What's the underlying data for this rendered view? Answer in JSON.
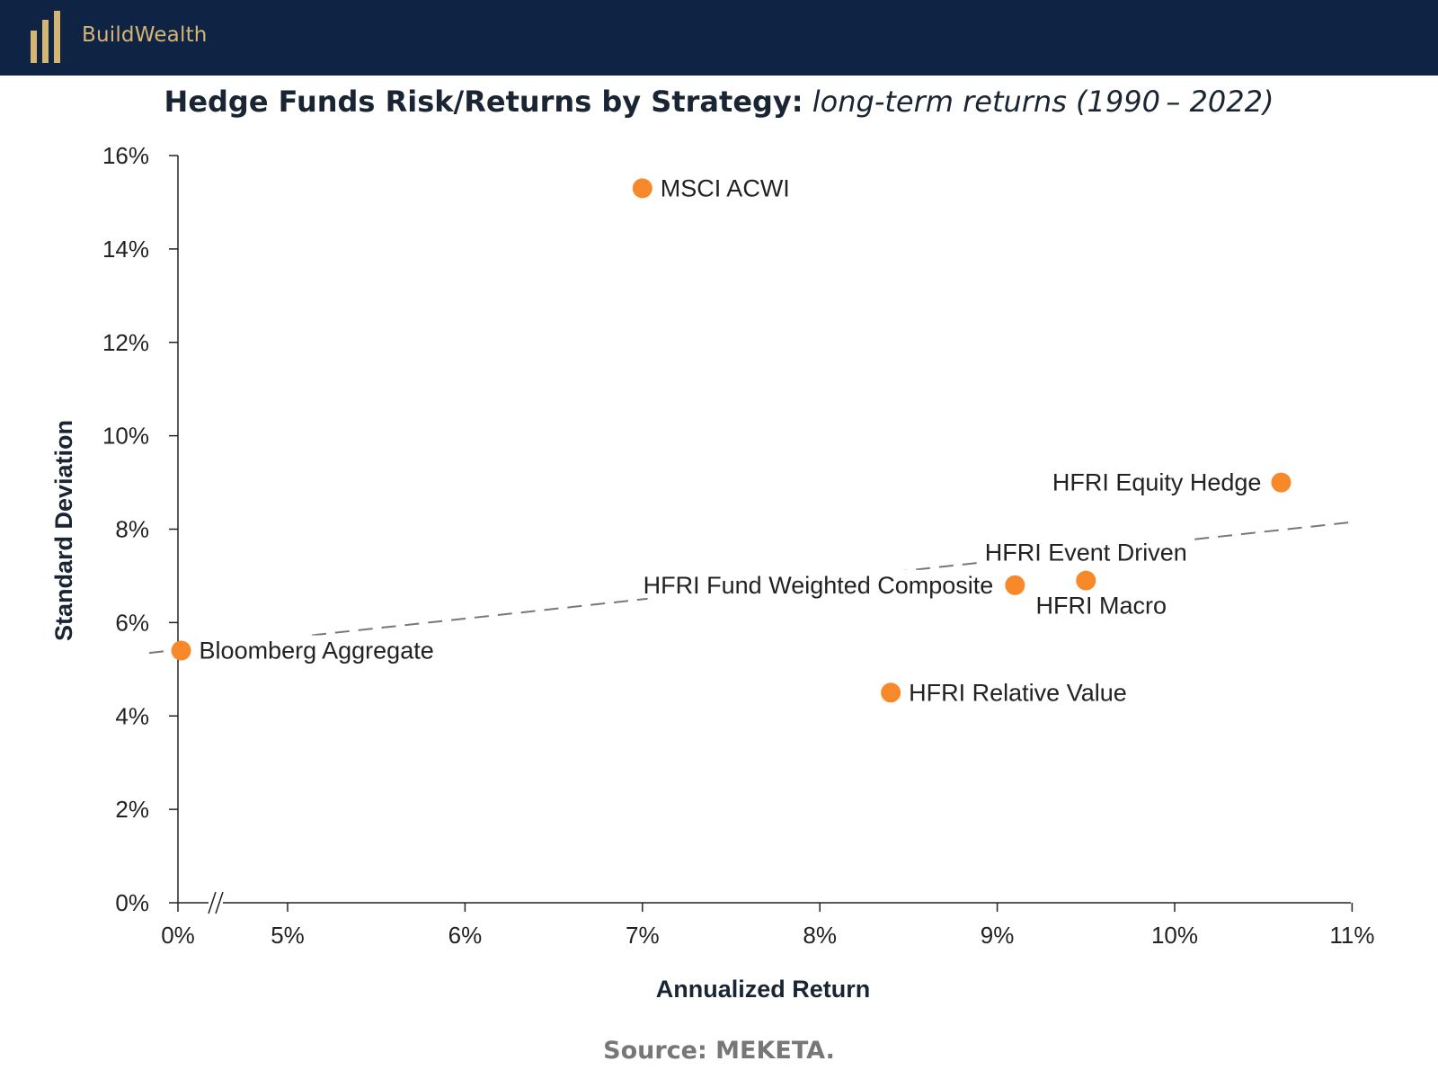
{
  "brand": {
    "name": "BuildWealth",
    "accent_color": "#d4b574",
    "bar_color": "#0f2444"
  },
  "title": {
    "bold": "Hedge Funds Risk/Returns by Strategy:",
    "italic": "long-term returns (1990 – 2022)"
  },
  "source": "Source: MEKETA.",
  "chart_data": {
    "type": "scatter",
    "xlabel": "Annualized Return",
    "ylabel": "Standard Deviation",
    "x_ticks": [
      "0%",
      "5%",
      "6%",
      "7%",
      "8%",
      "9%",
      "10%",
      "11%"
    ],
    "x_tick_values": [
      null,
      5,
      6,
      7,
      8,
      9,
      10,
      11
    ],
    "y_ticks": [
      "0%",
      "2%",
      "4%",
      "6%",
      "8%",
      "10%",
      "12%",
      "14%",
      "16%"
    ],
    "y_tick_values": [
      0,
      2,
      4,
      6,
      8,
      10,
      12,
      14,
      16
    ],
    "xlim": [
      4.38,
      11
    ],
    "ylim": [
      0,
      16
    ],
    "axis_break": true,
    "point_color": "#f7892b",
    "points": [
      {
        "label": "MSCI ACWI",
        "x": 7.0,
        "y": 15.3
      },
      {
        "label": "HFRI Equity Hedge",
        "x": 10.6,
        "y": 9.0
      },
      {
        "label": "HFRI Event Driven",
        "x": 9.5,
        "y": 6.9
      },
      {
        "label": "HFRI Macro",
        "x": 9.5,
        "y": 6.9
      },
      {
        "label": "HFRI Fund Weighted Composite",
        "x": 9.1,
        "y": 6.8
      },
      {
        "label": "Bloomberg Aggregate",
        "x": 4.4,
        "y": 5.4
      },
      {
        "label": "HFRI Relative Value",
        "x": 8.4,
        "y": 4.5
      }
    ],
    "trendline": {
      "style": "dashed",
      "color": "#777777",
      "x": [
        4.2,
        11.0
      ],
      "y": [
        5.35,
        8.15
      ]
    },
    "grid": false,
    "legend": "none"
  }
}
